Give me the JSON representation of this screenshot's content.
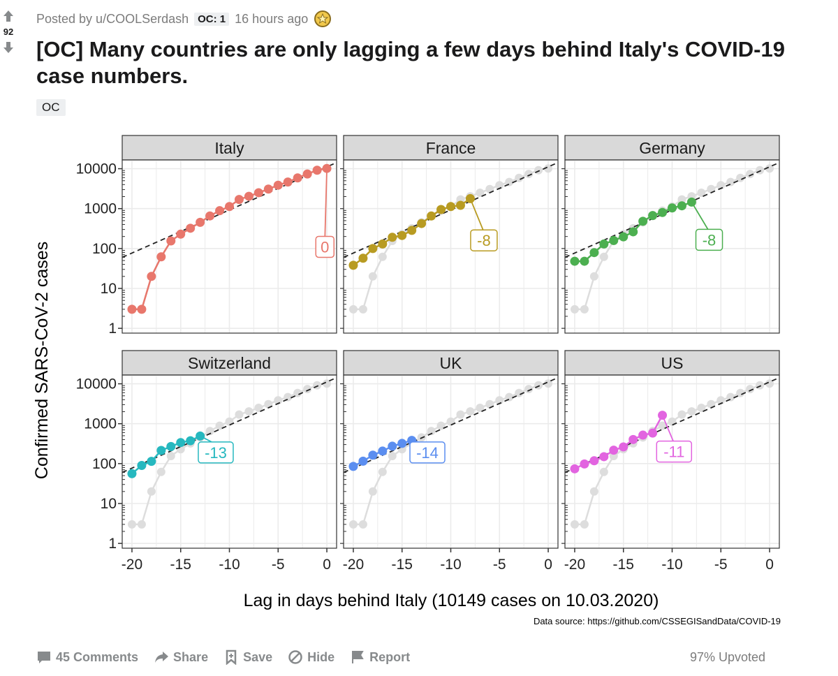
{
  "post": {
    "score": "92",
    "posted_by": "Posted by u/COOLSerdash",
    "oc_flair": "OC: 1",
    "time": "16 hours ago",
    "title": "[OC] Many countries are only lagging a few days behind Italy's COVID-19 case numbers.",
    "tag": "OC"
  },
  "actions": {
    "comments": "45 Comments",
    "share": "Share",
    "save": "Save",
    "hide": "Hide",
    "report": "Report",
    "upvoted": "97% Upvoted"
  },
  "colors": {
    "Italy": "#e8776c",
    "France": "#b89b22",
    "Germany": "#4caf50",
    "Switzerland": "#26b8bf",
    "UK": "#5b8ef0",
    "US": "#e264e0",
    "reference": "#dddddd",
    "strip": "#d9d9d9"
  },
  "chart_data": {
    "type": "line",
    "layout": "facet-grid 2x3",
    "ylabel": "Confirmed SARS-CoV-2 cases",
    "xlabel": "Lag in days behind Italy (10149 cases on 10.03.2020)",
    "source": "Data source: https://github.com/CSSEGISandData/COVID-19",
    "y_scale": "log10",
    "ylim": [
      1,
      10000
    ],
    "y_ticks": [
      "1",
      "10",
      "100",
      "1000",
      "10000"
    ],
    "xlim": [
      -21,
      1
    ],
    "x_ticks": [
      "-20",
      "-15",
      "-10",
      "-5",
      "0"
    ],
    "reference_series": {
      "x": [
        -20,
        -19,
        -18,
        -17,
        -16,
        -15,
        -14,
        -13,
        -12,
        -11,
        -10,
        -9,
        -8,
        -7,
        -6,
        -5,
        -4,
        -3,
        -2,
        -1,
        0
      ],
      "values": [
        3,
        3,
        20,
        62,
        155,
        229,
        322,
        453,
        655,
        888,
        1128,
        1694,
        2036,
        2502,
        3089,
        3858,
        4636,
        5883,
        7375,
        9172,
        10149
      ]
    },
    "panels": [
      {
        "name": "Italy",
        "lag_label": "0",
        "x": [
          -20,
          -19,
          -18,
          -17,
          -16,
          -15,
          -14,
          -13,
          -12,
          -11,
          -10,
          -9,
          -8,
          -7,
          -6,
          -5,
          -4,
          -3,
          -2,
          -1,
          0
        ],
        "values": [
          3,
          3,
          20,
          62,
          155,
          229,
          322,
          453,
          655,
          888,
          1128,
          1694,
          2036,
          2502,
          3089,
          3858,
          4636,
          5883,
          7375,
          9172,
          10149
        ]
      },
      {
        "name": "France",
        "lag_label": "-8",
        "x": [
          -20,
          -19,
          -18,
          -17,
          -16,
          -15,
          -14,
          -13,
          -12,
          -11,
          -10,
          -9,
          -8
        ],
        "values": [
          38,
          57,
          100,
          130,
          191,
          212,
          285,
          423,
          653,
          949,
          1126,
          1209,
          1784
        ]
      },
      {
        "name": "Germany",
        "lag_label": "-8",
        "x": [
          -20,
          -19,
          -18,
          -17,
          -16,
          -15,
          -14,
          -13,
          -12,
          -11,
          -10,
          -9,
          -8
        ],
        "values": [
          48,
          48,
          79,
          130,
          159,
          196,
          262,
          482,
          670,
          799,
          1040,
          1176,
          1457
        ]
      },
      {
        "name": "Switzerland",
        "lag_label": "-13",
        "x": [
          -20,
          -19,
          -18,
          -17,
          -16,
          -15,
          -14,
          -13
        ],
        "values": [
          56,
          90,
          114,
          214,
          268,
          337,
          374,
          491
        ]
      },
      {
        "name": "UK",
        "lag_label": "-14",
        "x": [
          -20,
          -19,
          -18,
          -17,
          -16,
          -15,
          -14
        ],
        "values": [
          85,
          115,
          163,
          206,
          273,
          321,
          382
        ]
      },
      {
        "name": "US",
        "lag_label": "-11",
        "x": [
          -20,
          -19,
          -18,
          -17,
          -16,
          -15,
          -14,
          -13,
          -12,
          -11
        ],
        "values": [
          74,
          98,
          118,
          149,
          217,
          262,
          402,
          518,
          583,
          1629
        ]
      }
    ]
  }
}
